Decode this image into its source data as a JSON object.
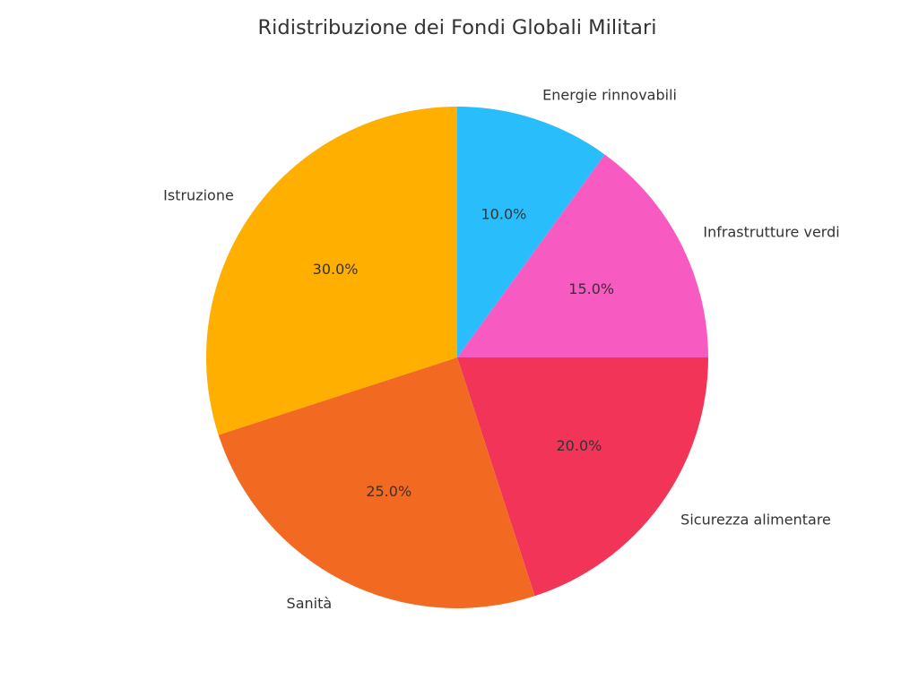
{
  "chart_data": {
    "type": "pie",
    "title": "Ridistribuzione dei Fondi Globali Militari",
    "start_angle_deg": 90,
    "direction": "clockwise",
    "slices": [
      {
        "label": "Energie rinnovabili",
        "value": 10.0,
        "pct_label": "10.0%",
        "color": "#29BDFB"
      },
      {
        "label": "Infrastrutture verdi",
        "value": 15.0,
        "pct_label": "15.0%",
        "color": "#F75BC2"
      },
      {
        "label": "Sicurezza alimentare",
        "value": 20.0,
        "pct_label": "20.0%",
        "color": "#F33459"
      },
      {
        "label": "Sanità",
        "value": 25.0,
        "pct_label": "25.0%",
        "color": "#F26A21"
      },
      {
        "label": "Istruzione",
        "value": 30.0,
        "pct_label": "30.0%",
        "color": "#FEAF00"
      }
    ]
  }
}
